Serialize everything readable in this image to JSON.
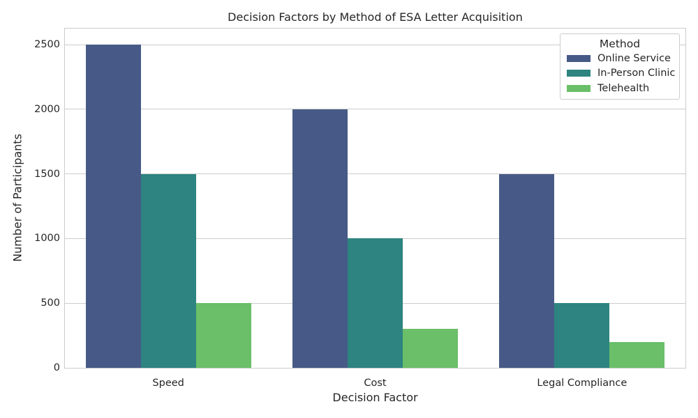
{
  "chart_data": {
    "type": "bar",
    "title": "Decision Factors by Method of ESA Letter Acquisition",
    "xlabel": "Decision Factor",
    "ylabel": "Number of Participants",
    "categories": [
      "Speed",
      "Cost",
      "Legal Compliance"
    ],
    "series": [
      {
        "name": "Online Service",
        "color": "#475a87",
        "values": [
          2500,
          2000,
          1500
        ]
      },
      {
        "name": "In-Person Clinic",
        "color": "#2d8480",
        "values": [
          1500,
          1000,
          500
        ]
      },
      {
        "name": "Telehealth",
        "color": "#6abf68",
        "values": [
          500,
          300,
          200
        ]
      }
    ],
    "yticks": [
      0,
      500,
      1000,
      1500,
      2000,
      2500
    ],
    "ylim": [
      0,
      2625
    ],
    "grid": "horizontal",
    "grid_color": "#cccccc",
    "axes_edge_color": "#cccccc",
    "text_color": "#262626",
    "background_color": "#ffffff",
    "legend": {
      "title": "Method",
      "position": "upper right",
      "entries": [
        "Online Service",
        "In-Person Clinic",
        "Telehealth"
      ]
    }
  }
}
